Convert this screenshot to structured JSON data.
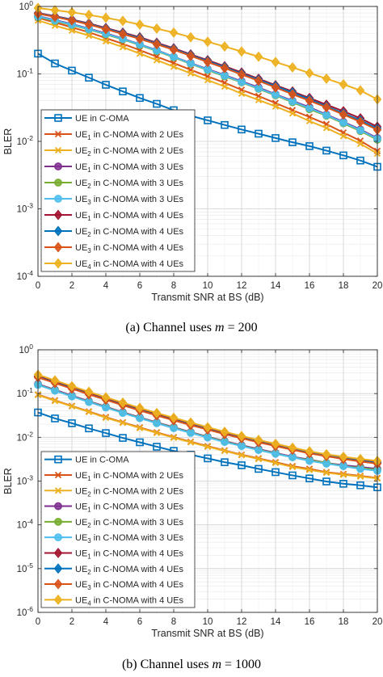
{
  "captions": [
    {
      "prefix": "(a) Channel uses ",
      "var": "m",
      "suffix": " = 200"
    },
    {
      "prefix": "(b) Channel uses ",
      "var": "m",
      "suffix": " = 1000"
    }
  ],
  "series_styles": [
    {
      "color": "#0072BD",
      "marker": "square"
    },
    {
      "color": "#D95319",
      "marker": "x"
    },
    {
      "color": "#EDB120",
      "marker": "x"
    },
    {
      "color": "#7E2F8E",
      "marker": "circle"
    },
    {
      "color": "#77AC30",
      "marker": "circle"
    },
    {
      "color": "#4DBEEE",
      "marker": "circle"
    },
    {
      "color": "#A2142F",
      "marker": "diamond"
    },
    {
      "color": "#0072BD",
      "marker": "diamond"
    },
    {
      "color": "#D95319",
      "marker": "diamond"
    },
    {
      "color": "#EDB120",
      "marker": "diamond"
    }
  ],
  "chart_data": [
    {
      "type": "line",
      "xlabel": "Transmit SNR at BS (dB)",
      "ylabel": "BLER",
      "yscale": "log",
      "xlim": [
        0,
        20
      ],
      "ylim": [
        0.0001,
        1
      ],
      "xticks": [
        "0",
        "2",
        "4",
        "6",
        "8",
        "10",
        "12",
        "14",
        "16",
        "18",
        "20"
      ],
      "yticks": [
        {
          "base": "10",
          "exp": "-4"
        },
        {
          "base": "10",
          "exp": "-3"
        },
        {
          "base": "10",
          "exp": "-2"
        },
        {
          "base": "10",
          "exp": "-1"
        },
        {
          "base": "10",
          "exp": "0"
        }
      ],
      "grid": true,
      "legend_position": "bottom-left",
      "x": [
        0,
        1,
        2,
        3,
        4,
        5,
        6,
        7,
        8,
        9,
        10,
        11,
        12,
        13,
        14,
        15,
        16,
        17,
        18,
        19,
        20
      ],
      "series": [
        {
          "name": {
            "ue": "UE",
            "sub": "",
            "rest": " in C-OMA"
          },
          "values": [
            0.2,
            0.143,
            0.112,
            0.088,
            0.069,
            0.055,
            0.044,
            0.036,
            0.029,
            0.024,
            0.0205,
            0.0175,
            0.015,
            0.013,
            0.0112,
            0.0097,
            0.0085,
            0.0073,
            0.0062,
            0.0052,
            0.0042
          ]
        },
        {
          "name": {
            "ue": "UE",
            "sub": "1",
            "rest": " in C-NOMA with 2 UEs"
          },
          "values": [
            0.68,
            0.58,
            0.49,
            0.415,
            0.34,
            0.28,
            0.225,
            0.18,
            0.145,
            0.115,
            0.092,
            0.074,
            0.058,
            0.047,
            0.037,
            0.029,
            0.023,
            0.018,
            0.0135,
            0.0102,
            0.0072
          ]
        },
        {
          "name": {
            "ue": "UE",
            "sub": "2",
            "rest": " in C-NOMA with 2 UEs"
          },
          "values": [
            0.62,
            0.52,
            0.44,
            0.37,
            0.305,
            0.25,
            0.2,
            0.16,
            0.128,
            0.102,
            0.081,
            0.065,
            0.051,
            0.041,
            0.033,
            0.026,
            0.02,
            0.0158,
            0.012,
            0.0092,
            0.0066
          ]
        },
        {
          "name": {
            "ue": "UE",
            "sub": "1",
            "rest": " in C-NOMA with 3 UEs"
          },
          "values": [
            0.72,
            0.63,
            0.55,
            0.47,
            0.4,
            0.335,
            0.275,
            0.225,
            0.18,
            0.145,
            0.118,
            0.096,
            0.078,
            0.063,
            0.05,
            0.04,
            0.032,
            0.025,
            0.0195,
            0.015,
            0.0112
          ]
        },
        {
          "name": {
            "ue": "UE",
            "sub": "2",
            "rest": " in C-NOMA with 3 UEs"
          },
          "values": [
            0.7,
            0.61,
            0.53,
            0.455,
            0.385,
            0.325,
            0.268,
            0.218,
            0.176,
            0.141,
            0.114,
            0.092,
            0.075,
            0.06,
            0.048,
            0.038,
            0.03,
            0.024,
            0.0185,
            0.0142,
            0.0106
          ]
        },
        {
          "name": {
            "ue": "UE",
            "sub": "3",
            "rest": " in C-NOMA with 3 UEs"
          },
          "values": [
            0.71,
            0.62,
            0.54,
            0.462,
            0.392,
            0.33,
            0.272,
            0.222,
            0.179,
            0.143,
            0.116,
            0.094,
            0.076,
            0.061,
            0.049,
            0.039,
            0.031,
            0.0245,
            0.019,
            0.0146,
            0.0109
          ]
        },
        {
          "name": {
            "ue": "UE",
            "sub": "1",
            "rest": " in C-NOMA with 4 UEs"
          },
          "values": [
            0.8,
            0.72,
            0.64,
            0.56,
            0.48,
            0.41,
            0.35,
            0.29,
            0.24,
            0.195,
            0.16,
            0.13,
            0.105,
            0.085,
            0.068,
            0.055,
            0.044,
            0.035,
            0.028,
            0.022,
            0.0165
          ]
        },
        {
          "name": {
            "ue": "UE",
            "sub": "2",
            "rest": " in C-NOMA with 4 UEs"
          },
          "values": [
            0.79,
            0.71,
            0.63,
            0.55,
            0.47,
            0.4,
            0.34,
            0.282,
            0.234,
            0.19,
            0.155,
            0.126,
            0.101,
            0.082,
            0.066,
            0.053,
            0.042,
            0.033,
            0.026,
            0.0205,
            0.0155
          ]
        },
        {
          "name": {
            "ue": "UE",
            "sub": "3",
            "rest": " in C-NOMA with 4 UEs"
          },
          "values": [
            0.78,
            0.7,
            0.62,
            0.54,
            0.46,
            0.39,
            0.33,
            0.275,
            0.228,
            0.185,
            0.15,
            0.122,
            0.098,
            0.079,
            0.063,
            0.05,
            0.04,
            0.032,
            0.025,
            0.0195,
            0.0148
          ]
        },
        {
          "name": {
            "ue": "UE",
            "sub": "4",
            "rest": " in C-NOMA with 4 UEs"
          },
          "values": [
            0.95,
            0.88,
            0.82,
            0.75,
            0.68,
            0.61,
            0.54,
            0.47,
            0.41,
            0.35,
            0.3,
            0.255,
            0.215,
            0.18,
            0.15,
            0.125,
            0.103,
            0.085,
            0.07,
            0.057,
            0.042
          ]
        }
      ]
    },
    {
      "type": "line",
      "xlabel": "Transmit SNR at BS (dB)",
      "ylabel": "BLER",
      "yscale": "log",
      "xlim": [
        0,
        20
      ],
      "ylim": [
        1e-06,
        1
      ],
      "xticks": [
        "0",
        "2",
        "4",
        "6",
        "8",
        "10",
        "12",
        "14",
        "16",
        "18",
        "20"
      ],
      "yticks": [
        {
          "base": "10",
          "exp": "-6"
        },
        {
          "base": "10",
          "exp": "-5"
        },
        {
          "base": "10",
          "exp": "-4"
        },
        {
          "base": "10",
          "exp": "-3"
        },
        {
          "base": "10",
          "exp": "-2"
        },
        {
          "base": "10",
          "exp": "-1"
        },
        {
          "base": "10",
          "exp": "0"
        }
      ],
      "grid": true,
      "legend_position": "bottom-left",
      "x": [
        0,
        1,
        2,
        3,
        4,
        5,
        6,
        7,
        8,
        9,
        10,
        11,
        12,
        13,
        14,
        15,
        16,
        17,
        18,
        19,
        20
      ],
      "series": [
        {
          "name": {
            "ue": "UE",
            "sub": "",
            "rest": " in C-OMA"
          },
          "values": [
            0.037,
            0.027,
            0.021,
            0.016,
            0.0125,
            0.0097,
            0.0077,
            0.0061,
            0.0049,
            0.004,
            0.0033,
            0.0027,
            0.0023,
            0.0019,
            0.0016,
            0.00135,
            0.00115,
            0.00098,
            0.00087,
            0.0008,
            0.00072
          ]
        },
        {
          "name": {
            "ue": "UE",
            "sub": "1",
            "rest": " in C-NOMA with 2 UEs"
          },
          "values": [
            0.095,
            0.07,
            0.052,
            0.039,
            0.029,
            0.022,
            0.0168,
            0.013,
            0.0101,
            0.0079,
            0.0063,
            0.005,
            0.004,
            0.0033,
            0.0027,
            0.0022,
            0.0019,
            0.0016,
            0.00145,
            0.00132,
            0.00118
          ]
        },
        {
          "name": {
            "ue": "UE",
            "sub": "2",
            "rest": " in C-NOMA with 2 UEs"
          },
          "values": [
            0.093,
            0.068,
            0.051,
            0.038,
            0.028,
            0.0215,
            0.0163,
            0.0126,
            0.0098,
            0.0077,
            0.0061,
            0.0049,
            0.0039,
            0.0032,
            0.0026,
            0.0021,
            0.0018,
            0.00155,
            0.0014,
            0.00128,
            0.00115
          ]
        },
        {
          "name": {
            "ue": "UE",
            "sub": "1",
            "rest": " in C-NOMA with 3 UEs"
          },
          "values": [
            0.165,
            0.122,
            0.09,
            0.067,
            0.05,
            0.0375,
            0.0285,
            0.022,
            0.017,
            0.0132,
            0.0103,
            0.0082,
            0.0066,
            0.0054,
            0.0044,
            0.0036,
            0.0031,
            0.0026,
            0.0023,
            0.0021,
            0.0019
          ]
        },
        {
          "name": {
            "ue": "UE",
            "sub": "2",
            "rest": " in C-NOMA with 3 UEs"
          },
          "values": [
            0.16,
            0.118,
            0.087,
            0.065,
            0.049,
            0.0365,
            0.0278,
            0.0214,
            0.0166,
            0.0129,
            0.0101,
            0.008,
            0.0064,
            0.0052,
            0.0043,
            0.0035,
            0.003,
            0.0026,
            0.0022,
            0.002,
            0.0018
          ]
        },
        {
          "name": {
            "ue": "UE",
            "sub": "3",
            "rest": " in C-NOMA with 3 UEs"
          },
          "values": [
            0.158,
            0.116,
            0.086,
            0.064,
            0.048,
            0.036,
            0.0273,
            0.021,
            0.0162,
            0.0126,
            0.0099,
            0.0078,
            0.0063,
            0.0051,
            0.0042,
            0.0035,
            0.0029,
            0.0025,
            0.0022,
            0.0019,
            0.00172
          ]
        },
        {
          "name": {
            "ue": "UE",
            "sub": "1",
            "rest": " in C-NOMA with 4 UEs"
          },
          "values": [
            0.25,
            0.185,
            0.138,
            0.103,
            0.077,
            0.058,
            0.044,
            0.034,
            0.0263,
            0.0205,
            0.016,
            0.0126,
            0.0101,
            0.0082,
            0.0067,
            0.0055,
            0.0046,
            0.0039,
            0.0034,
            0.003,
            0.0027
          ]
        },
        {
          "name": {
            "ue": "UE",
            "sub": "2",
            "rest": " in C-NOMA with 4 UEs"
          },
          "values": [
            0.24,
            0.178,
            0.132,
            0.098,
            0.073,
            0.055,
            0.042,
            0.0322,
            0.025,
            0.0195,
            0.0153,
            0.012,
            0.0097,
            0.0079,
            0.0064,
            0.0053,
            0.0044,
            0.0038,
            0.0033,
            0.0029,
            0.0026
          ]
        },
        {
          "name": {
            "ue": "UE",
            "sub": "3",
            "rest": " in C-NOMA with 4 UEs"
          },
          "values": [
            0.235,
            0.174,
            0.129,
            0.096,
            0.072,
            0.054,
            0.041,
            0.0316,
            0.0245,
            0.019,
            0.015,
            0.0118,
            0.0095,
            0.0077,
            0.0063,
            0.0052,
            0.0043,
            0.0037,
            0.0032,
            0.0028,
            0.0025
          ]
        },
        {
          "name": {
            "ue": "UE",
            "sub": "4",
            "rest": " in C-NOMA with 4 UEs"
          },
          "values": [
            0.27,
            0.2,
            0.148,
            0.11,
            0.082,
            0.062,
            0.047,
            0.036,
            0.028,
            0.0218,
            0.017,
            0.0134,
            0.0107,
            0.0087,
            0.0071,
            0.0058,
            0.0048,
            0.0041,
            0.0036,
            0.0032,
            0.0029
          ]
        }
      ]
    }
  ]
}
